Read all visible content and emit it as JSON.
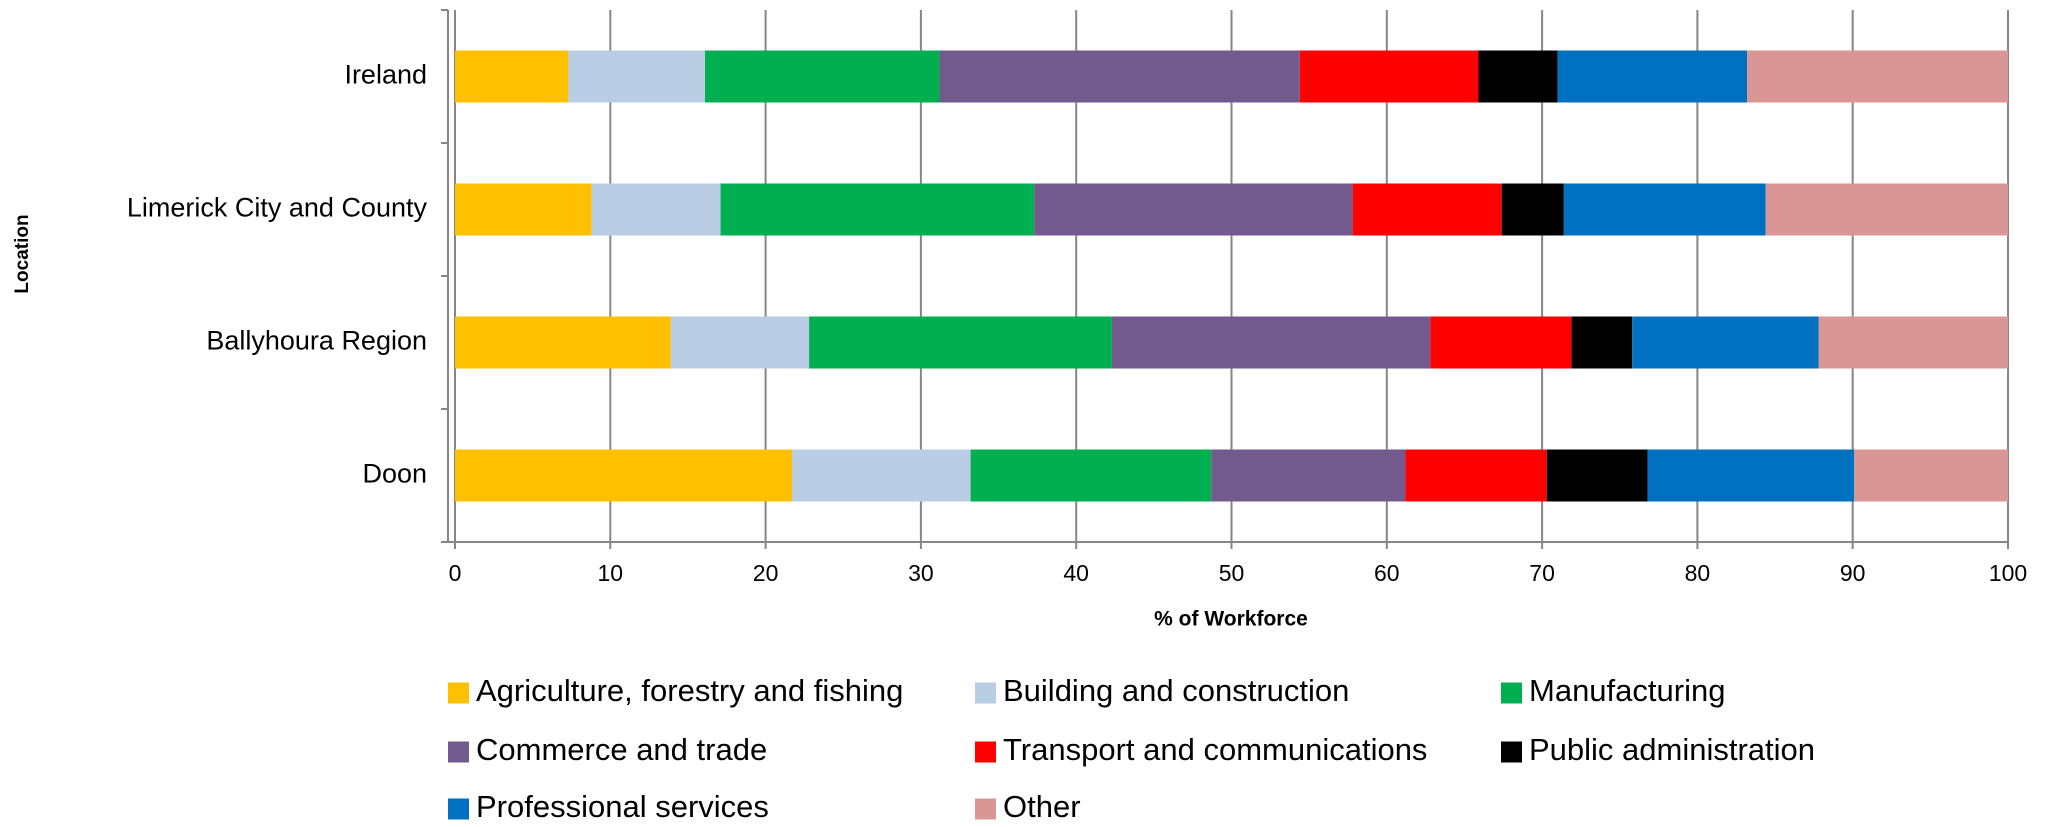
{
  "chart_data": {
    "type": "stacked-barh",
    "ylabel": "Location",
    "xlabel": "% of Workforce",
    "categories": [
      "Ireland",
      "Limerick City and County",
      "Ballyhoura Region",
      "Doon"
    ],
    "series": [
      {
        "name": "Agriculture, forestry and fishing",
        "color": "#ffc000",
        "values": [
          7.3,
          8.8,
          13.9,
          21.7
        ]
      },
      {
        "name": "Building and construction",
        "color": "#b9cde5",
        "values": [
          8.8,
          8.3,
          8.9,
          11.5
        ]
      },
      {
        "name": "Manufacturing",
        "color": "#00b050",
        "values": [
          15.1,
          20.2,
          19.5,
          15.5
        ]
      },
      {
        "name": "Commerce and trade",
        "color": "#725a8e",
        "values": [
          23.2,
          20.5,
          20.5,
          12.5
        ]
      },
      {
        "name": "Transport and communications",
        "color": "#ff0000",
        "values": [
          11.5,
          9.6,
          9.1,
          9.1
        ]
      },
      {
        "name": "Public administration",
        "color": "#000000",
        "values": [
          5.1,
          4.0,
          3.9,
          6.5
        ]
      },
      {
        "name": "Professional services",
        "color": "#0070c0",
        "values": [
          12.2,
          13.0,
          12.0,
          13.3
        ]
      },
      {
        "name": "Other",
        "color": "#d99694",
        "values": [
          16.8,
          15.6,
          12.2,
          9.9
        ]
      }
    ],
    "xlim": [
      0,
      100
    ],
    "xticks": [
      0,
      10,
      20,
      30,
      40,
      50,
      60,
      70,
      80,
      90,
      100
    ],
    "grid": true
  }
}
